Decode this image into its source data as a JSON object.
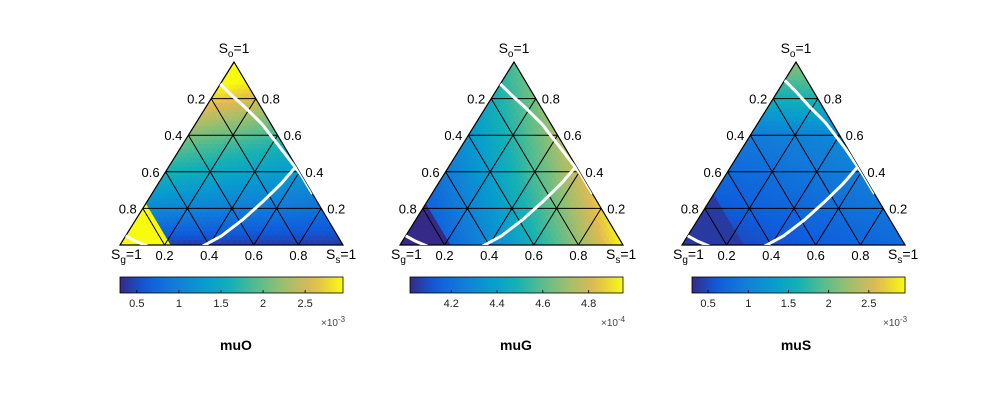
{
  "figure": {
    "corner_labels": {
      "top": {
        "base": "S",
        "sub": "o",
        "suffix": "=1"
      },
      "left": {
        "base": "S",
        "sub": "g",
        "suffix": "=1"
      },
      "right": {
        "base": "S",
        "sub": "s",
        "suffix": "=1"
      }
    },
    "axis_tick_labels": [
      "0.2",
      "0.4",
      "0.6",
      "0.8"
    ]
  },
  "chart_data": [
    {
      "type": "heatmap",
      "title": "muO",
      "colorbar": {
        "range": [
          0.3,
          2.95
        ],
        "ticks": [
          0.5,
          1,
          1.5,
          2,
          2.5
        ],
        "tick_labels": [
          "0.5",
          "1",
          "1.5",
          "2",
          "2.5"
        ],
        "exponent_base": "×10",
        "exponent": "-3"
      },
      "field": {
        "kind": "muO",
        "low": 0.4,
        "high": 2.95,
        "sg_cutoff": 0.78
      },
      "boundary_curves": [
        [
          [
            0.12,
            0.0
          ],
          [
            0.1,
            0.08
          ],
          [
            0.07,
            0.18
          ],
          [
            0.04,
            0.3
          ],
          [
            0.02,
            0.46
          ],
          [
            0.0,
            0.62
          ],
          [
            0.0,
            0.72
          ]
        ],
        [
          [
            0.95,
            0.0
          ],
          [
            0.92,
            0.06
          ],
          [
            0.86,
            0.16
          ],
          [
            0.78,
            0.26
          ],
          [
            0.66,
            0.36
          ],
          [
            0.52,
            0.43
          ],
          [
            0.38,
            0.48
          ],
          [
            0.24,
            0.52
          ],
          [
            0.12,
            0.55
          ],
          [
            0.0,
            0.57
          ]
        ]
      ]
    },
    {
      "type": "heatmap",
      "title": "muG",
      "colorbar": {
        "range": [
          4.02,
          4.95
        ],
        "ticks": [
          4.2,
          4.4,
          4.6,
          4.8
        ],
        "tick_labels": [
          "4.2",
          "4.4",
          "4.6",
          "4.8"
        ],
        "exponent_base": "×10",
        "exponent": "-4"
      },
      "field": {
        "kind": "muG",
        "low": 4.02,
        "high": 4.95,
        "sg_cutoff": 0.78
      },
      "boundary_curves": [
        [
          [
            0.12,
            0.0
          ],
          [
            0.1,
            0.08
          ],
          [
            0.07,
            0.18
          ],
          [
            0.04,
            0.3
          ],
          [
            0.02,
            0.46
          ],
          [
            0.0,
            0.62
          ],
          [
            0.0,
            0.72
          ]
        ],
        [
          [
            0.95,
            0.0
          ],
          [
            0.92,
            0.06
          ],
          [
            0.86,
            0.16
          ],
          [
            0.78,
            0.26
          ],
          [
            0.66,
            0.36
          ],
          [
            0.52,
            0.43
          ],
          [
            0.38,
            0.48
          ],
          [
            0.24,
            0.52
          ],
          [
            0.12,
            0.55
          ],
          [
            0.0,
            0.57
          ]
        ]
      ]
    },
    {
      "type": "heatmap",
      "title": "muS",
      "colorbar": {
        "range": [
          0.3,
          2.95
        ],
        "ticks": [
          0.5,
          1,
          1.5,
          2,
          2.5
        ],
        "tick_labels": [
          "0.5",
          "1",
          "1.5",
          "2",
          "2.5"
        ],
        "exponent_base": "×10",
        "exponent": "-3"
      },
      "field": {
        "kind": "muS",
        "low": 0.4,
        "high": 2.95,
        "sg_cutoff": 0.72
      },
      "boundary_curves": [
        [
          [
            0.1,
            0.0
          ],
          [
            0.08,
            0.08
          ],
          [
            0.06,
            0.18
          ],
          [
            0.03,
            0.3
          ],
          [
            0.01,
            0.46
          ],
          [
            0.0,
            0.62
          ],
          [
            0.0,
            0.72
          ]
        ],
        [
          [
            0.95,
            0.0
          ],
          [
            0.92,
            0.06
          ],
          [
            0.86,
            0.16
          ],
          [
            0.78,
            0.26
          ],
          [
            0.66,
            0.36
          ],
          [
            0.52,
            0.43
          ],
          [
            0.38,
            0.48
          ],
          [
            0.24,
            0.52
          ],
          [
            0.12,
            0.55
          ],
          [
            0.0,
            0.57
          ]
        ]
      ]
    }
  ]
}
